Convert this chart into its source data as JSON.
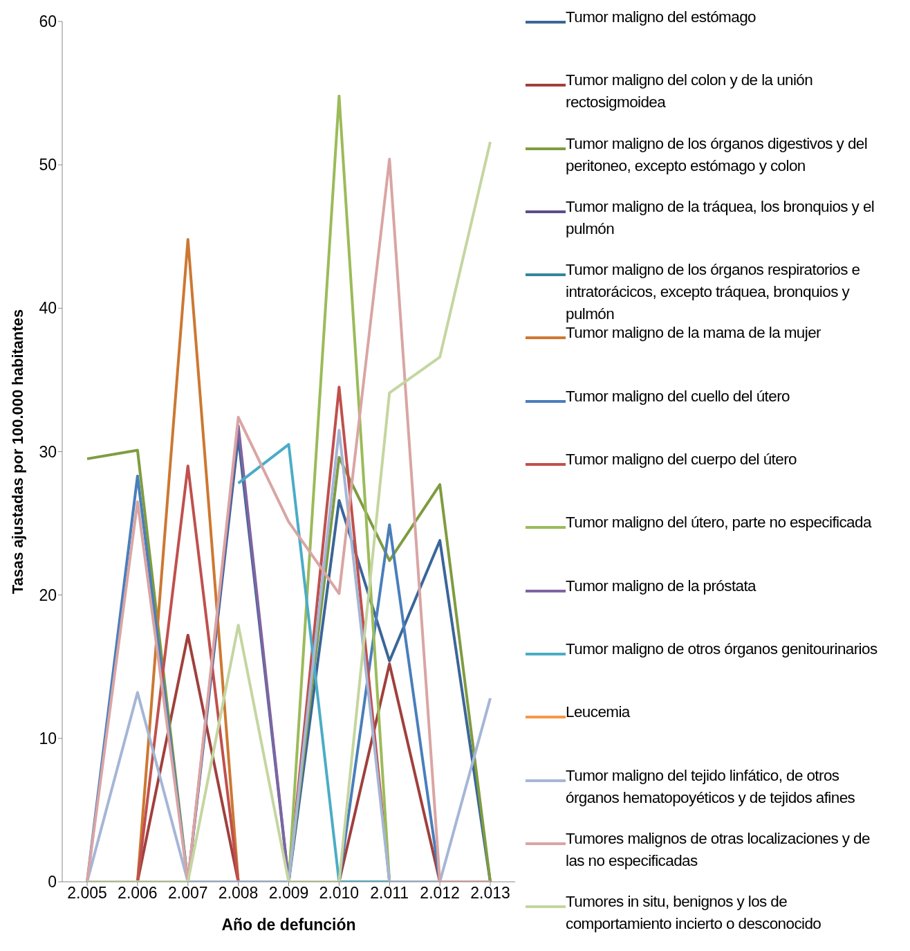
{
  "chart_data": {
    "type": "line",
    "xlabel": "Año de defunción",
    "ylabel": "Tasas ajustadas por 100.000 habitantes",
    "categories": [
      "2.005",
      "2.006",
      "2.007",
      "2.008",
      "2.009",
      "2.010",
      "2.011",
      "2.012",
      "2.013"
    ],
    "ylim": [
      0,
      60
    ],
    "yticks": [
      0,
      10,
      20,
      30,
      40,
      50,
      60
    ],
    "grid": false,
    "legend": "right",
    "marker": "none",
    "line_style": "solid",
    "series": [
      {
        "name": "Tumor maligno del estómago",
        "color": "#3a6699",
        "values": [
          0,
          0,
          0,
          31,
          0,
          26.6,
          15.4,
          23.8,
          0
        ]
      },
      {
        "name": "Tumor maligno del colon y de la unión rectosigmoidea",
        "color": "#a0403c",
        "values": [
          0,
          0,
          17.2,
          0,
          0,
          0,
          15.2,
          0,
          0
        ]
      },
      {
        "name": "Tumor maligno de los órganos digestivos y del peritoneo, excepto estómago y colon",
        "color": "#7f9c40",
        "values": [
          29.5,
          30.1,
          0,
          0,
          0,
          29.6,
          22.4,
          27.7,
          0
        ]
      },
      {
        "name": "Tumor maligno de la tráquea, los bronquios y el pulmón",
        "color": "#5f4b8b",
        "values": [
          null,
          null,
          null,
          null,
          null,
          null,
          null,
          null,
          null
        ]
      },
      {
        "name": "Tumor maligno de los órganos respiratorios e intratorácicos, excepto tráquea, bronquios y pulmón",
        "color": "#35869b",
        "values": [
          null,
          null,
          null,
          null,
          null,
          null,
          null,
          null,
          null
        ]
      },
      {
        "name": "Tumor maligno de la mama de la mujer",
        "color": "#cc7832",
        "values": [
          0,
          0,
          44.8,
          0,
          0,
          0,
          0,
          0,
          0
        ]
      },
      {
        "name": "Tumor maligno del cuello del útero",
        "color": "#4a7ebb",
        "values": [
          0,
          28.3,
          0,
          0,
          0,
          0,
          24.9,
          0,
          0
        ]
      },
      {
        "name": "Tumor maligno del cuerpo del útero",
        "color": "#c0504d",
        "values": [
          0,
          0,
          29,
          0,
          0,
          34.5,
          0,
          0,
          0
        ]
      },
      {
        "name": "Tumor maligno del útero, parte no especificada",
        "color": "#9bbb59",
        "values": [
          0,
          0,
          0,
          0,
          0,
          54.8,
          0,
          0,
          0
        ]
      },
      {
        "name": "Tumor maligno de la próstata",
        "color": "#8064a2",
        "values": [
          0,
          0,
          0,
          31.8,
          0,
          0,
          0,
          0,
          0
        ]
      },
      {
        "name": "Tumor maligno de otros órganos genitourinarios",
        "color": "#4bacc6",
        "values": [
          null,
          null,
          null,
          27.8,
          30.5,
          0,
          0,
          null,
          null
        ]
      },
      {
        "name": "Leucemia",
        "color": "#f79646",
        "values": [
          null,
          null,
          null,
          null,
          null,
          null,
          null,
          null,
          null
        ]
      },
      {
        "name": "Tumor maligno del tejido linfático, de otros órganos hematopoyéticos y de tejidos afines",
        "color": "#a5b6d6",
        "values": [
          0,
          13.2,
          0,
          0,
          0,
          31.5,
          0,
          0,
          12.8
        ]
      },
      {
        "name": "Tumores malignos de otras localizaciones y de las no especificadas",
        "color": "#d9a5a4",
        "values": [
          0,
          26.5,
          0,
          32.4,
          25.1,
          20.1,
          50.4,
          0,
          0
        ]
      },
      {
        "name": "Tumores in situ, benignos y los de comportamiento incierto o desconocido",
        "color": "#c4d6a0",
        "values": [
          0,
          0,
          0,
          17.9,
          0,
          0,
          34.1,
          36.6,
          51.6
        ]
      }
    ]
  }
}
